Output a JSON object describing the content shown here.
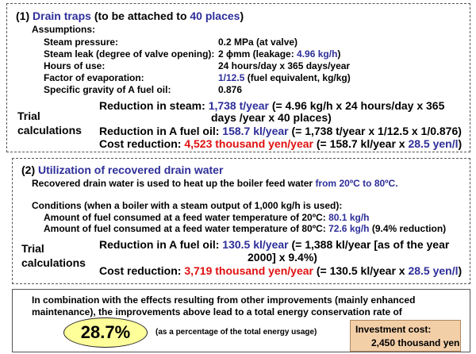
{
  "section1": {
    "heading_num": "(1)",
    "heading_title": "Drain traps",
    "heading_suffix": "(to be attached to",
    "heading_count": "40 places",
    "heading_close": ")",
    "assumptions_label": "Assumptions:",
    "rows": [
      {
        "label": "Steam pressure:",
        "value": "0.2 MPa (at valve)"
      },
      {
        "label": "Steam leak (degree of valve opening):",
        "value": "2 ϕmm (leakage:",
        "value_hl": "4.96 kg/h",
        "value_end": ")"
      },
      {
        "label": "Hours of use:",
        "value": "24 hours/day x 365 days/year"
      },
      {
        "label": "Factor of evaporation:",
        "value_hl": "1/12.5",
        "value": "(fuel equivalent, kg/kg)"
      },
      {
        "label": "Specific gravity of A fuel oil:",
        "value": "0.876"
      }
    ],
    "trial_label_1": "Trial",
    "trial_label_2": "calculations",
    "steam_label": "Reduction in steam:",
    "steam_value": "1,738 t/year",
    "steam_formula_1": "(= 4.96 kg/h x 24 hours/day x 365",
    "steam_formula_2": "days /year x 40 places)",
    "oil_label": "Reduction in A fuel oil:",
    "oil_value": "158.7 kl/year",
    "oil_formula": "(= 1,738 t/year x 1/12.5 x 1/0.876)",
    "cost_label": "Cost reduction:",
    "cost_value": "4,523 thousand yen/year",
    "cost_formula": "(= 158.7 kl/year x",
    "cost_rate": "28.5 yen/l",
    "cost_close": ")"
  },
  "section2": {
    "heading_num": "(2)",
    "heading_title": "Utilization of recovered drain water",
    "intro": "Recovered drain water is used to heat up the boiler feed water",
    "intro_hl": "from 20ºC to 80ºC.",
    "conditions": "Conditions (when a boiler with a steam output of 1,000 kg/h is used):",
    "fuel20_label": "Amount of fuel consumed at a feed water temperature of 20ºC:",
    "fuel20_value": "80.1 kg/h",
    "fuel80_label": "Amount of fuel consumed at a feed water temperature of 80ºC:",
    "fuel80_value": "72.6 kg/h",
    "fuel80_note": "(9.4% reduction)",
    "trial_label_1": "Trial",
    "trial_label_2": "calculations",
    "oil_label": "Reduction in A fuel oil:",
    "oil_value": "130.5 kl/year",
    "oil_formula_1": "(= 1,388 kl/year [as of the year",
    "oil_formula_2": "2000] x 9.4%)",
    "cost_label": "Cost reduction:",
    "cost_value": "3,719 thousand yen/year",
    "cost_formula": "(= 130.5 kl/year x",
    "cost_rate": "28.5 yen/l",
    "cost_close": ")"
  },
  "summary": {
    "line1": "In combination with the effects resulting from other improvements (mainly enhanced",
    "line2": "maintenance), the improvements above lead to a total energy conservation rate of",
    "rate": "28.7%",
    "rate_note": "(as a percentage of the total energy usage)",
    "invest_label": "Investment cost:",
    "invest_value": "2,450 thousand yen"
  }
}
